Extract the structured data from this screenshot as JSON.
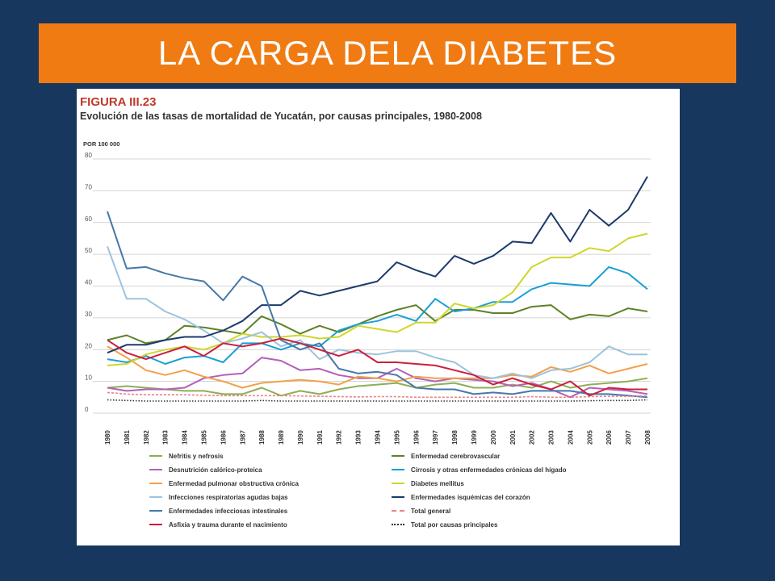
{
  "slide": {
    "title": "LA CARGA DELA DIABETES"
  },
  "figure": {
    "label": "FIGURA III.23",
    "subtitle": "Evolución de las tasas de mortalidad de Yucatán, por causas principales, 1980-2008",
    "unit": "POR 100 000"
  },
  "chart_data": {
    "type": "line",
    "title": "Evolución de las tasas de mortalidad de Yucatán, por causas principales, 1980-2008",
    "ylabel": "POR 100 000",
    "xlabel": "",
    "ylim": [
      0,
      80
    ],
    "yticks": [
      0,
      10,
      20,
      30,
      40,
      50,
      60,
      70,
      80
    ],
    "grid": true,
    "legend_position": "bottom",
    "x": [
      "1980",
      "1981",
      "1982",
      "1983",
      "1984",
      "1985",
      "1986",
      "1987",
      "1988",
      "1989",
      "1990",
      "1991",
      "1992",
      "1993",
      "1994",
      "1995",
      "1996",
      "1997",
      "1998",
      "1999",
      "2000",
      "2001",
      "2002",
      "2003",
      "2004",
      "2005",
      "2006",
      "2007",
      "2008"
    ],
    "series": [
      {
        "name": "Nefritis y nefrosis",
        "color": "#8dae55",
        "style": "solid",
        "values": [
          8,
          8.5,
          8,
          7.5,
          7,
          7,
          6,
          6,
          8,
          5.5,
          7,
          6,
          7.5,
          8.5,
          9,
          9.5,
          8,
          9,
          9.5,
          8,
          8,
          9,
          8,
          10,
          8,
          9,
          9.5,
          10,
          11
        ]
      },
      {
        "name": "Enfermedad cerebrovascular",
        "color": "#5d8227",
        "style": "solid",
        "values": [
          23,
          24.5,
          22,
          23,
          27.5,
          27,
          26,
          25,
          30.5,
          28,
          25,
          27.5,
          25.5,
          28,
          30.5,
          32.5,
          34,
          29,
          32.5,
          32.5,
          31.5,
          31.5,
          33.5,
          34,
          29.5,
          31,
          30.5,
          33,
          32
        ]
      },
      {
        "name": "Desnutrición calórico-proteica",
        "color": "#b360b8",
        "style": "solid",
        "values": [
          8,
          7,
          7.5,
          7.5,
          8,
          11,
          12,
          12.5,
          17.5,
          16.5,
          13.5,
          14,
          12,
          11,
          11,
          14,
          11,
          10,
          11,
          10.5,
          10,
          8.5,
          9.5,
          7.5,
          5,
          8,
          7.5,
          7,
          6
        ]
      },
      {
        "name": "Cirrosis y otras enfermedades crónicas del hígado",
        "color": "#1a9fd4",
        "style": "solid",
        "values": [
          17,
          16,
          18,
          15.5,
          17.5,
          18,
          16,
          22,
          22,
          20,
          22,
          21,
          26,
          28,
          29,
          31,
          29,
          36,
          32,
          33,
          35,
          35,
          39,
          41,
          40.5,
          40,
          46,
          44,
          39
        ]
      },
      {
        "name": "Enfermedad pulmonar obstructiva crónica",
        "color": "#f2a14a",
        "style": "solid",
        "values": [
          21,
          17.5,
          13.5,
          12,
          13.5,
          11.5,
          10,
          8,
          9.5,
          10,
          10.5,
          10,
          9,
          11.5,
          11,
          10,
          11.5,
          11,
          11,
          11,
          11,
          12,
          11.5,
          14.5,
          13,
          15,
          12.5,
          14,
          15.5
        ]
      },
      {
        "name": "Diabetes mellitus",
        "color": "#cfd62a",
        "style": "solid",
        "values": [
          15,
          15.5,
          18.5,
          20,
          21,
          20,
          22,
          25,
          24,
          24,
          24.5,
          23.5,
          24,
          27.5,
          26.5,
          25.5,
          28.5,
          28.5,
          34.5,
          33,
          34,
          38,
          46,
          49,
          49,
          52,
          51,
          55,
          56.5
        ]
      },
      {
        "name": "Infecciones respiratorias agudas bajas",
        "color": "#9cc3de",
        "style": "solid",
        "values": [
          52.5,
          36,
          36,
          32,
          29.5,
          26,
          22,
          23.5,
          25.5,
          21,
          23,
          17,
          20,
          19,
          18.5,
          19.5,
          19.5,
          17.5,
          16,
          12,
          11,
          12.5,
          11,
          13.5,
          14,
          16,
          21,
          18.5,
          18.5
        ]
      },
      {
        "name": "Enfermedades isquémicas del corazón",
        "color": "#1b3b6b",
        "style": "solid",
        "values": [
          19,
          21.5,
          21.5,
          23,
          24,
          24,
          26,
          29,
          34,
          34,
          38.5,
          37,
          38.5,
          40,
          41.5,
          47.5,
          45,
          43,
          49.5,
          47,
          49.5,
          54,
          53.5,
          63,
          54,
          64,
          59,
          64,
          74.5
        ]
      },
      {
        "name": "Enfermedades infecciosas intestinales",
        "color": "#4678a8",
        "style": "solid",
        "values": [
          63.5,
          45.5,
          46,
          44,
          42.5,
          41.5,
          35.5,
          43,
          40,
          23,
          20,
          22,
          14,
          12.5,
          13,
          12,
          8,
          7.5,
          7.5,
          6,
          6.5,
          6,
          7,
          7,
          7,
          6,
          6,
          5.5,
          5
        ]
      },
      {
        "name": "Total general",
        "color": "#e8828a",
        "style": "dashed",
        "values": [
          6.5,
          6,
          5.8,
          5.8,
          5.8,
          5.6,
          5.5,
          5.5,
          5.5,
          5.5,
          5.4,
          5.3,
          5.2,
          5.1,
          5.2,
          5.2,
          5,
          5,
          5,
          5,
          5,
          5,
          5.2,
          5,
          5,
          5.2,
          5.3,
          5.3,
          5.4
        ]
      },
      {
        "name": "Asfixia y trauma durante el nacimiento",
        "color": "#cc1e3c",
        "style": "solid",
        "values": [
          23,
          19,
          17,
          19,
          21,
          18,
          22,
          21,
          22,
          23.5,
          22,
          20,
          18,
          20,
          16,
          16,
          15.5,
          15,
          13.5,
          12,
          9,
          11,
          9,
          7.5,
          10,
          5.5,
          8,
          7.5,
          7.5
        ]
      },
      {
        "name": "Total por causas principales",
        "color": "#333333",
        "style": "dotted",
        "values": [
          4.2,
          4,
          3.8,
          3.8,
          3.8,
          3.8,
          3.8,
          3.8,
          4,
          3.8,
          3.8,
          3.8,
          3.8,
          3.8,
          3.8,
          3.8,
          3.8,
          3.8,
          3.8,
          3.8,
          3.8,
          3.8,
          3.8,
          3.8,
          3.8,
          3.9,
          4,
          4,
          4.2
        ]
      }
    ]
  }
}
